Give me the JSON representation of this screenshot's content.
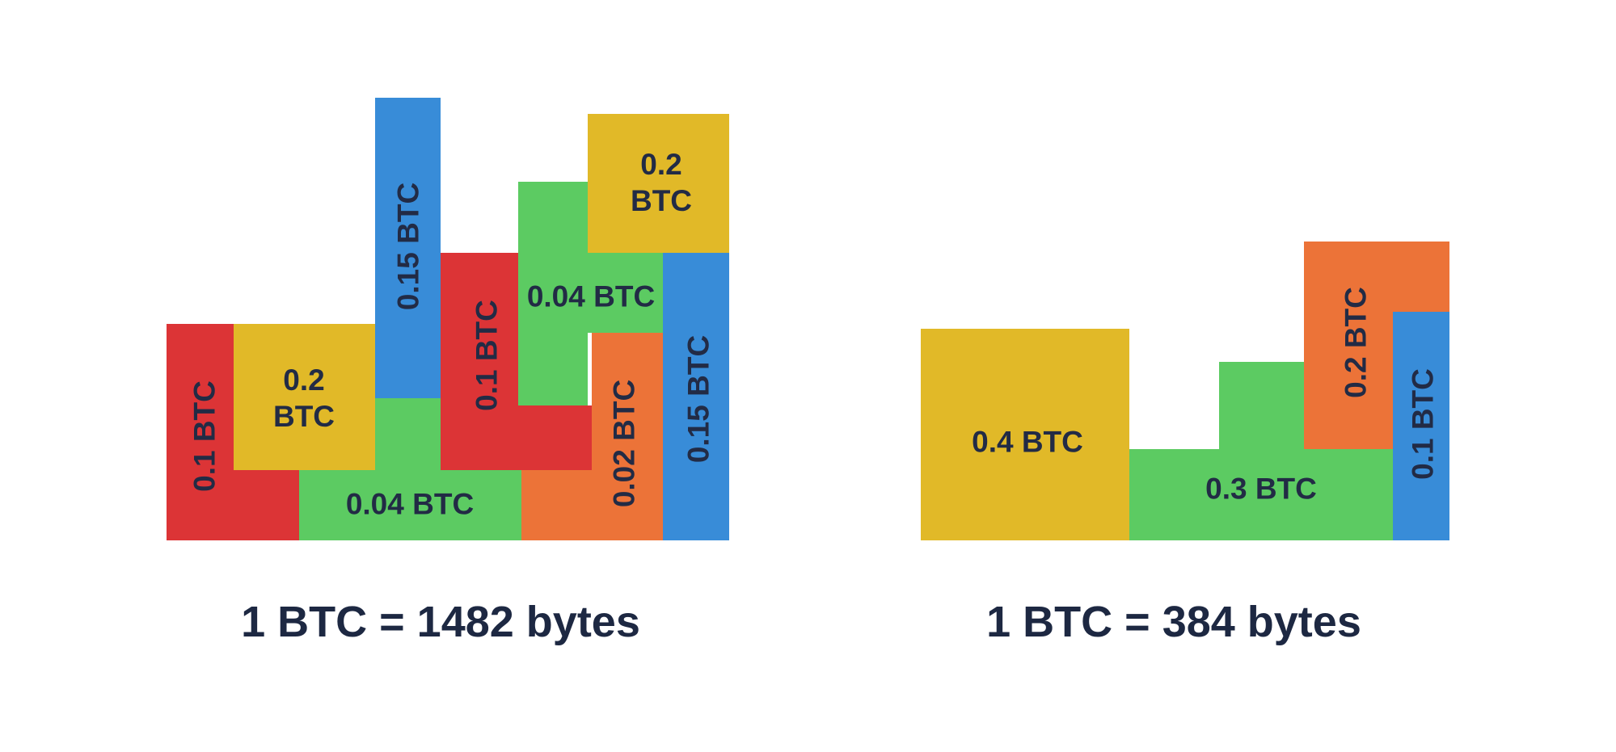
{
  "colors": {
    "red": "#dc3436",
    "yellow": "#e1b928",
    "blue": "#388cd8",
    "green": "#5ccb62",
    "orange": "#ec7338",
    "text": "#222b45"
  },
  "left_group": {
    "caption": "1 BTC = 1482 bytes",
    "labels": {
      "red_a": "0.1 BTC",
      "yellow_a_line1": "0.2",
      "yellow_a_line2": "BTC",
      "blue_a": "0.15 BTC",
      "red_b": "0.1 BTC",
      "green_a": "0.04 BTC",
      "yellow_b_line1": "0.2",
      "yellow_b_line2": "BTC",
      "green_b": "0.04 BTC",
      "orange_a": "0.02 BTC",
      "blue_b": "0.15 BTC"
    }
  },
  "right_group": {
    "caption": "1 BTC = 384 bytes",
    "labels": {
      "yellow": "0.4 BTC",
      "green": "0.3 BTC",
      "orange": "0.2 BTC",
      "blue": "0.1 BTC"
    }
  }
}
